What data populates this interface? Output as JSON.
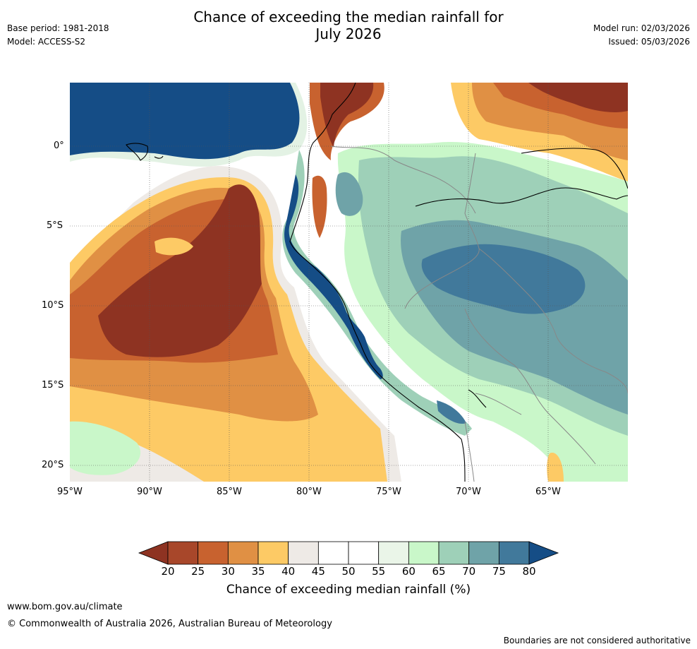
{
  "header": {
    "title_line1": "Chance of exceeding the median rainfall for",
    "title_line2": "July 2026",
    "base_period": "Base period: 1981-2018",
    "model": "Model: ACCESS-S2",
    "model_run": "Model run: 02/03/2026",
    "issued": "Issued: 05/03/2026"
  },
  "map": {
    "lat_labels": [
      "0°",
      "5°S",
      "10°S",
      "15°S",
      "20°S"
    ],
    "lon_labels": [
      "95°W",
      "90°W",
      "85°W",
      "80°W",
      "75°W",
      "70°W",
      "65°W"
    ]
  },
  "colorbar": {
    "ticks": [
      "20",
      "25",
      "30",
      "35",
      "40",
      "45",
      "50",
      "55",
      "60",
      "65",
      "70",
      "75",
      "80"
    ],
    "colors": [
      "#a8472a",
      "#c8622f",
      "#e09044",
      "#fdca65",
      "#eeeae6",
      "#ffffff",
      "#ffffff",
      "#eaf5e8",
      "#c9f7c9",
      "#9ed0b8",
      "#6fa3a8",
      "#41799b"
    ],
    "low_color": "#8e3322",
    "high_color": "#154d86",
    "label": "Chance of exceeding median rainfall (%)"
  },
  "footer": {
    "website": "www.bom.gov.au/climate",
    "copyright": "© Commonwealth of Australia 2026, Australian Bureau of Meteorology",
    "disclaimer": "Boundaries are not considered authoritative"
  }
}
